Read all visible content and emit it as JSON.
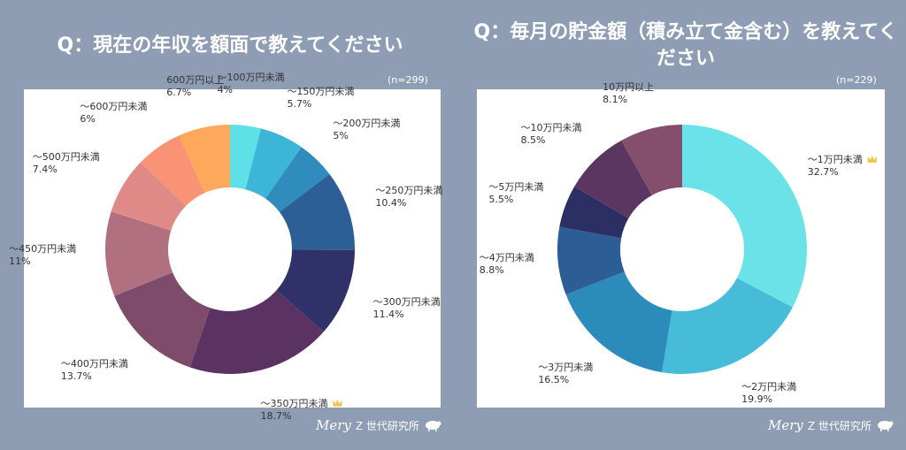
{
  "left": {
    "title": "Q：現在の年収を額面で教えてください",
    "n": "(n=299)"
  },
  "right": {
    "title": "Q：毎月の貯金額（積み立て金含む）を教えてください",
    "n": "(n=229)"
  },
  "footer": {
    "brand": "Mery",
    "org": "Z 世代研究所"
  },
  "chart_data": [
    {
      "type": "pie",
      "title": "Q：現在の年収を額面で教えてください",
      "categories": [
        "〜100万円未満",
        "〜150万円未満",
        "〜200万円未満",
        "〜250万円未満",
        "〜300万円未満",
        "〜350万円未満",
        "〜400万円未満",
        "〜450万円未満",
        "〜500万円未満",
        "〜600万円未満",
        "600万円以上"
      ],
      "value_labels": [
        "4%",
        "5.7%",
        "5%",
        "10.4%",
        "11.4%",
        "18.7%",
        "13.7%",
        "11%",
        "7.4%",
        "6%",
        "6.7%"
      ],
      "values": [
        4,
        5.7,
        5,
        10.4,
        11.4,
        18.7,
        13.7,
        11,
        7.4,
        6,
        6.7
      ],
      "colors": [
        "#5ee0e6",
        "#3cb5d6",
        "#2f8cbc",
        "#2c5f96",
        "#2f3168",
        "#5a3362",
        "#7e4b6a",
        "#b1707f",
        "#df8a87",
        "#fa9276",
        "#fda85a"
      ],
      "highlight": "〜350万円未満"
    },
    {
      "type": "pie",
      "title": "Q：毎月の貯金額（積み立て金含む）を教えてください",
      "categories": [
        "〜1万円未満",
        "〜2万円未満",
        "〜3万円未満",
        "〜4万円未満",
        "〜5万円未満",
        "〜10万円未満",
        "10万円以上"
      ],
      "value_labels": [
        "32.7%",
        "19.9%",
        "16.5%",
        "8.8%",
        "5.5%",
        "8.5%",
        "8.1%"
      ],
      "values": [
        32.7,
        19.9,
        16.5,
        8.8,
        5.5,
        8.5,
        8.1
      ],
      "colors": [
        "#6ae2e8",
        "#46bcd9",
        "#2b8bbb",
        "#2c5e95",
        "#2b2f64",
        "#5b3660",
        "#854e6c"
      ],
      "highlight": "〜1万円未満"
    }
  ]
}
